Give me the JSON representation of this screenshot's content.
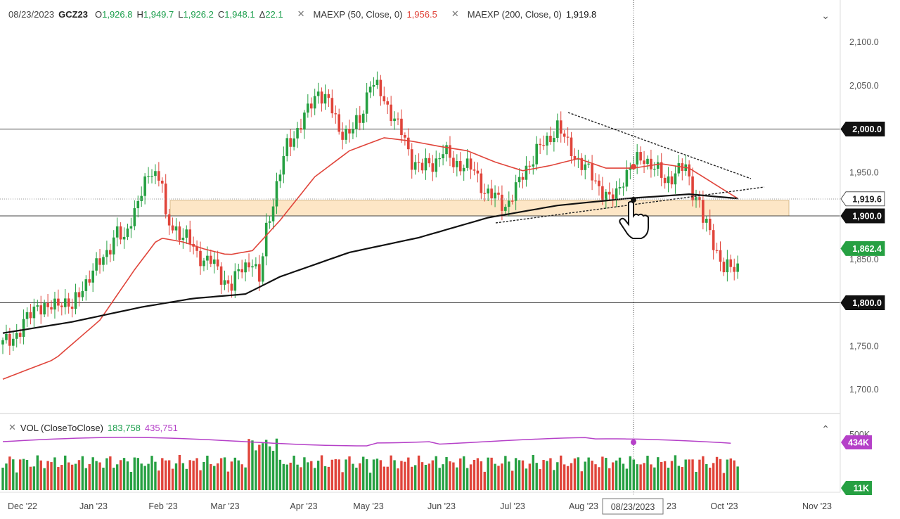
{
  "header": {
    "date": "08/23/2023",
    "symbol": "GCZ23",
    "o_label": "O",
    "o_value": "1,926.8",
    "h_label": "H",
    "h_value": "1,949.7",
    "l_label": "L",
    "l_value": "1,926.2",
    "c_label": "C",
    "c_value": "1,948.1",
    "d_label": "Δ",
    "d_value": "22.1",
    "close_icon": "✕",
    "ma50_label": "MAEXP (50, Close, 0)",
    "ma50_value": "1,956.5",
    "ma200_label": "MAEXP (200, Close, 0)",
    "ma200_value": "1,919.8",
    "collapse_icon": "⌄"
  },
  "volume_header": {
    "label": "VOL (CloseToClose)",
    "value1": "183,758",
    "value2": "435,751",
    "close_icon": "✕",
    "expand_icon": "⌃"
  },
  "colors": {
    "up": "#26a042",
    "down": "#e0443a",
    "ma50": "#e0443a",
    "ma200": "#111111",
    "zone": "#fde6c6",
    "vol_avg": "#b540c8"
  },
  "chart_data": {
    "type": "candlestick",
    "y_axis": {
      "ticks": [
        "2,100.0",
        "2,050.0",
        "1,950.0",
        "1,850.0",
        "1,750.0",
        "1,700.0"
      ],
      "range": [
        1690,
        2115
      ]
    },
    "x_axis": {
      "ticks": [
        "Dec '22",
        "Jan '23",
        "Feb '23",
        "Mar '23",
        "Apr '23",
        "May '23",
        "Jun '23",
        "Jul '23",
        "Aug '23",
        "Oct '23",
        "Nov '23"
      ],
      "partial_tick": "23",
      "crosshair_label": "08/23/2023"
    },
    "horizontal_levels": [
      {
        "label": "2,000.0",
        "value": 2000
      },
      {
        "label": "1,900.0",
        "value": 1900
      },
      {
        "label": "1,800.0",
        "value": 1800
      }
    ],
    "price_badges": [
      {
        "label": "1,919.6",
        "value": 1919.6
      },
      {
        "label": "1,862.4",
        "value": 1862.4
      }
    ],
    "support_zone": [
      1900,
      1918
    ],
    "moving_averages": [
      {
        "name": "MAEXP 50",
        "last": 1956.5
      },
      {
        "name": "MAEXP 200",
        "last": 1919.8
      }
    ],
    "price_path": [
      [
        0,
        1752
      ],
      [
        5,
        1768
      ],
      [
        10,
        1800
      ],
      [
        13,
        1790
      ],
      [
        17,
        1805
      ],
      [
        20,
        1792
      ],
      [
        23,
        1820
      ],
      [
        27,
        1840
      ],
      [
        30,
        1860
      ],
      [
        33,
        1880
      ],
      [
        35,
        1870
      ],
      [
        37,
        1900
      ],
      [
        39,
        1915
      ],
      [
        41,
        1935
      ],
      [
        43,
        1955
      ],
      [
        46,
        1940
      ],
      [
        47,
        1890
      ],
      [
        50,
        1885
      ],
      [
        53,
        1875
      ],
      [
        56,
        1855
      ],
      [
        60,
        1848
      ],
      [
        63,
        1830
      ],
      [
        66,
        1820
      ],
      [
        69,
        1840
      ],
      [
        72,
        1850
      ],
      [
        74,
        1822
      ],
      [
        76,
        1885
      ],
      [
        79,
        1935
      ],
      [
        82,
        1980
      ],
      [
        85,
        2000
      ],
      [
        88,
        2020
      ],
      [
        91,
        2045
      ],
      [
        94,
        2030
      ],
      [
        97,
        2000
      ],
      [
        100,
        1995
      ],
      [
        103,
        2010
      ],
      [
        106,
        2055
      ],
      [
        109,
        2040
      ],
      [
        112,
        2020
      ],
      [
        115,
        1995
      ],
      [
        118,
        1965
      ],
      [
        121,
        1955
      ],
      [
        124,
        1960
      ],
      [
        127,
        1975
      ],
      [
        130,
        1960
      ],
      [
        133,
        1960
      ],
      [
        136,
        1950
      ],
      [
        139,
        1930
      ],
      [
        142,
        1920
      ],
      [
        145,
        1912
      ],
      [
        148,
        1930
      ],
      [
        151,
        1955
      ],
      [
        154,
        1975
      ],
      [
        157,
        1985
      ],
      [
        160,
        2005
      ],
      [
        163,
        1980
      ],
      [
        166,
        1965
      ],
      [
        169,
        1950
      ],
      [
        172,
        1935
      ],
      [
        175,
        1918
      ],
      [
        177,
        1925
      ],
      [
        179,
        1945
      ],
      [
        182,
        1960
      ],
      [
        185,
        1968
      ],
      [
        188,
        1955
      ],
      [
        191,
        1940
      ],
      [
        194,
        1950
      ],
      [
        197,
        1955
      ],
      [
        199,
        1930
      ],
      [
        201,
        1915
      ],
      [
        202,
        1895
      ],
      [
        204,
        1880
      ],
      [
        206,
        1860
      ],
      [
        208,
        1840
      ],
      [
        210,
        1838
      ],
      [
        212,
        1842
      ]
    ],
    "ma50_path": [
      [
        0,
        1712
      ],
      [
        15,
        1735
      ],
      [
        28,
        1780
      ],
      [
        38,
        1838
      ],
      [
        45,
        1875
      ],
      [
        52,
        1870
      ],
      [
        58,
        1862
      ],
      [
        65,
        1855
      ],
      [
        72,
        1860
      ],
      [
        80,
        1895
      ],
      [
        90,
        1945
      ],
      [
        100,
        1975
      ],
      [
        110,
        1990
      ],
      [
        118,
        1986
      ],
      [
        126,
        1980
      ],
      [
        134,
        1975
      ],
      [
        142,
        1962
      ],
      [
        150,
        1952
      ],
      [
        158,
        1958
      ],
      [
        166,
        1966
      ],
      [
        174,
        1955
      ],
      [
        182,
        1955
      ],
      [
        190,
        1960
      ],
      [
        198,
        1955
      ],
      [
        206,
        1935
      ],
      [
        212,
        1920
      ]
    ],
    "ma200_path": [
      [
        0,
        1765
      ],
      [
        20,
        1778
      ],
      [
        40,
        1795
      ],
      [
        55,
        1805
      ],
      [
        70,
        1810
      ],
      [
        80,
        1830
      ],
      [
        100,
        1858
      ],
      [
        120,
        1875
      ],
      [
        140,
        1898
      ],
      [
        160,
        1912
      ],
      [
        180,
        1920
      ],
      [
        198,
        1925
      ],
      [
        212,
        1920
      ]
    ],
    "volume": {
      "right_labels": [
        "434K",
        "11K"
      ],
      "axis_partial": "500K"
    }
  }
}
